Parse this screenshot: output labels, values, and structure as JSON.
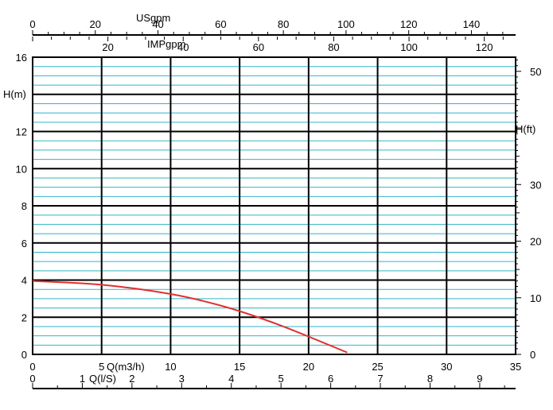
{
  "chart_data": {
    "type": "line",
    "title": "",
    "series": [
      {
        "color": "#e03030",
        "x": [
          0,
          5,
          10,
          14,
          18,
          22.8
        ],
        "y": [
          3.95,
          3.75,
          3.25,
          2.55,
          1.55,
          0.1
        ]
      }
    ],
    "xaxis_bottom": {
      "label": "Q(m3/h)",
      "ticks": [
        "0",
        "5",
        "10",
        "15",
        "20",
        "25",
        "30",
        "35"
      ],
      "range": [
        0,
        35
      ]
    },
    "xaxis_ls": {
      "label": "Q(l/S)",
      "ticks": [
        "0",
        "1",
        "2",
        "3",
        "4",
        "5",
        "6",
        "7",
        "8",
        "9"
      ]
    },
    "xaxis_usgpm": {
      "label": "USgpm",
      "ticks": [
        "0",
        "20",
        "40",
        "60",
        "80",
        "100",
        "120",
        "140"
      ]
    },
    "xaxis_impgpm": {
      "label": "IMPgpm",
      "ticks": [
        "20",
        "40",
        "60",
        "80",
        "100",
        "120"
      ]
    },
    "yaxis_left": {
      "label": "H(m)",
      "ticks": [
        "0",
        "2",
        "4",
        "6",
        "8",
        "10",
        "12",
        "16"
      ],
      "range": [
        0,
        16
      ]
    },
    "yaxis_right": {
      "label": "H(ft)",
      "ticks": [
        "0",
        "10",
        "20",
        "30",
        "50"
      ]
    },
    "grid": true,
    "colors": {
      "major_grid": "#000000",
      "minor_grid": "#30b5c8",
      "curve": "#e03030"
    }
  }
}
